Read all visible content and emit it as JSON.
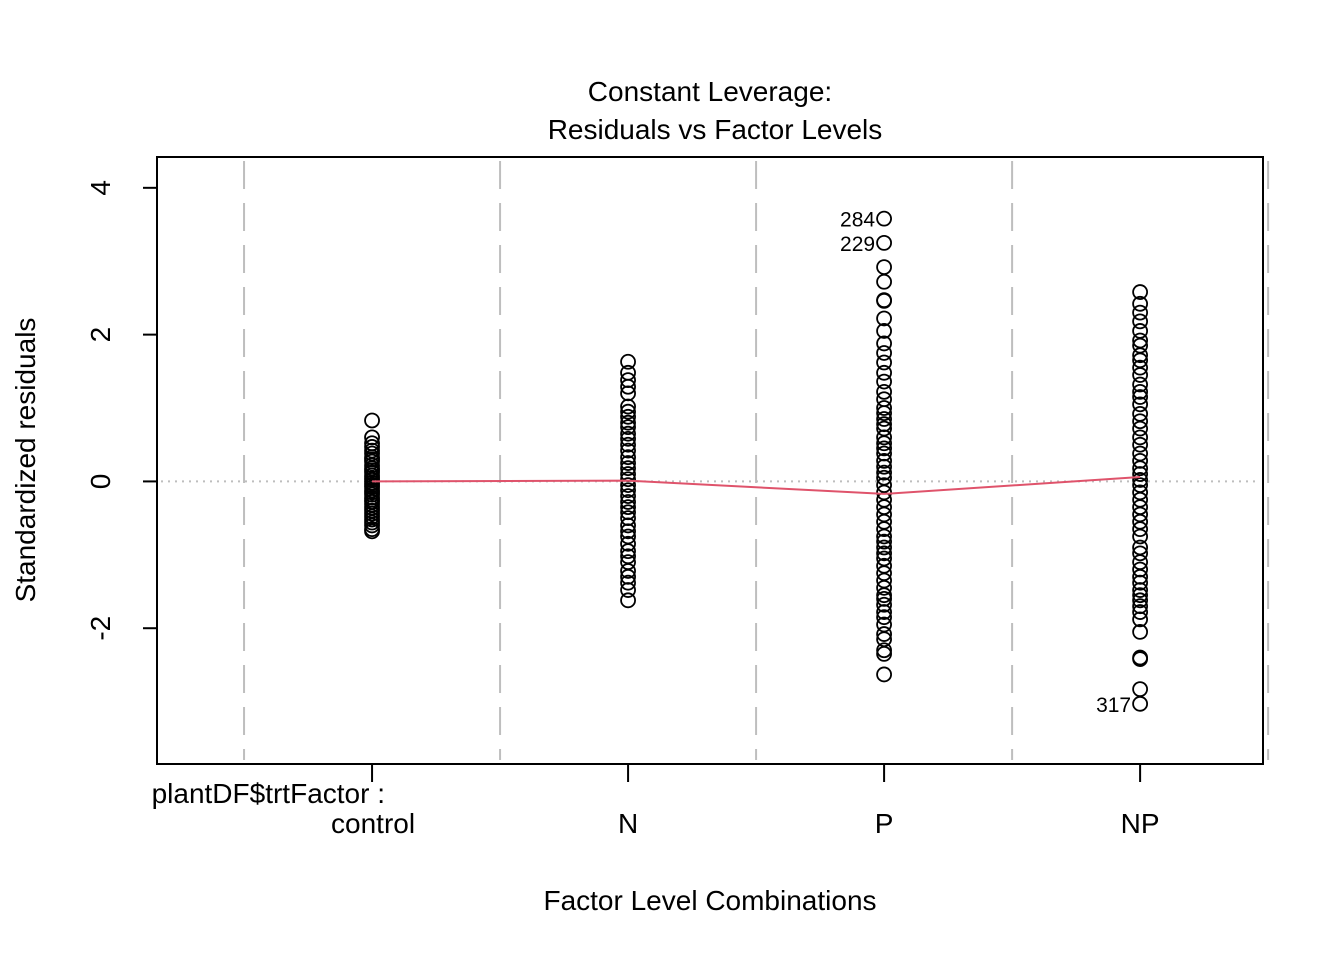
{
  "chart_data": {
    "type": "scatter",
    "title": "Constant Leverage:",
    "subtitle": "Residuals vs Factor Levels",
    "xlabel": "Factor Level Combinations",
    "ylabel": "Standardized residuals",
    "factor_prefix": "plantDF$trtFactor :",
    "categories": [
      "control",
      "N",
      "P",
      "NP"
    ],
    "y_ticks": [
      -2,
      0,
      2,
      4
    ],
    "ylim": [
      -3.85,
      4.42
    ],
    "xlim": [
      -0.5,
      3.5
    ],
    "grid": "dashed vertical separators between factor levels",
    "reference_line": 0,
    "colors": {
      "points": "#000000",
      "trend": "#DF536B",
      "grid": "#BEBEBE",
      "zero_line": "#BEBEBE"
    },
    "trend_means": [
      0.0,
      0.01,
      -0.17,
      0.06
    ],
    "series": [
      {
        "category": "control",
        "values": [
          0.83,
          0.6,
          0.52,
          0.47,
          0.42,
          0.38,
          0.33,
          0.3,
          0.27,
          0.22,
          0.18,
          0.15,
          0.12,
          0.08,
          0.05,
          0.02,
          -0.02,
          -0.05,
          -0.08,
          -0.12,
          -0.15,
          -0.18,
          -0.22,
          -0.25,
          -0.28,
          -0.32,
          -0.36,
          -0.4,
          -0.44,
          -0.48,
          -0.52,
          -0.56,
          -0.6,
          -0.65,
          -0.68
        ]
      },
      {
        "category": "N",
        "values": [
          1.63,
          1.48,
          1.38,
          1.29,
          1.2,
          1.02,
          0.95,
          0.88,
          0.8,
          0.74,
          0.65,
          0.58,
          0.5,
          0.42,
          0.33,
          0.25,
          0.18,
          0.1,
          0.03,
          -0.05,
          -0.12,
          -0.2,
          -0.28,
          -0.35,
          -0.42,
          -0.5,
          -0.6,
          -0.68,
          -0.75,
          -0.85,
          -0.95,
          -1.02,
          -1.1,
          -1.22,
          -1.3,
          -1.38,
          -1.48,
          -1.62
        ]
      },
      {
        "category": "P",
        "values": [
          3.58,
          3.25,
          2.92,
          2.72,
          2.47,
          2.46,
          2.22,
          2.05,
          1.88,
          1.75,
          1.62,
          1.48,
          1.36,
          1.22,
          1.12,
          1.0,
          0.93,
          0.85,
          0.78,
          0.72,
          0.6,
          0.52,
          0.45,
          0.38,
          0.28,
          0.2,
          0.12,
          0.05,
          -0.05,
          -0.15,
          -0.25,
          -0.35,
          -0.45,
          -0.55,
          -0.65,
          -0.75,
          -0.82,
          -0.9,
          -0.98,
          -1.05,
          -1.15,
          -1.25,
          -1.35,
          -1.45,
          -1.55,
          -1.6,
          -1.68,
          -1.78,
          -1.85,
          -1.95,
          -2.08,
          -2.15,
          -2.3,
          -2.35,
          -2.63
        ]
      },
      {
        "category": "NP",
        "values": [
          2.58,
          2.42,
          2.3,
          2.18,
          2.05,
          1.92,
          1.85,
          1.72,
          1.65,
          1.55,
          1.45,
          1.32,
          1.22,
          1.15,
          1.05,
          0.92,
          0.82,
          0.72,
          0.6,
          0.5,
          0.38,
          0.28,
          0.18,
          0.1,
          0.02,
          -0.05,
          -0.15,
          -0.25,
          -0.35,
          -0.45,
          -0.55,
          -0.65,
          -0.75,
          -0.9,
          -0.98,
          -1.1,
          -1.2,
          -1.3,
          -1.38,
          -1.48,
          -1.55,
          -1.62,
          -1.7,
          -1.78,
          -1.88,
          -2.05,
          -2.4,
          -2.42,
          -2.83,
          -3.03
        ]
      }
    ],
    "annotations": [
      {
        "label": "284",
        "category": "P",
        "value": 3.58
      },
      {
        "label": "229",
        "category": "P",
        "value": 3.25
      },
      {
        "label": "317",
        "category": "NP",
        "value": -3.03
      }
    ]
  }
}
